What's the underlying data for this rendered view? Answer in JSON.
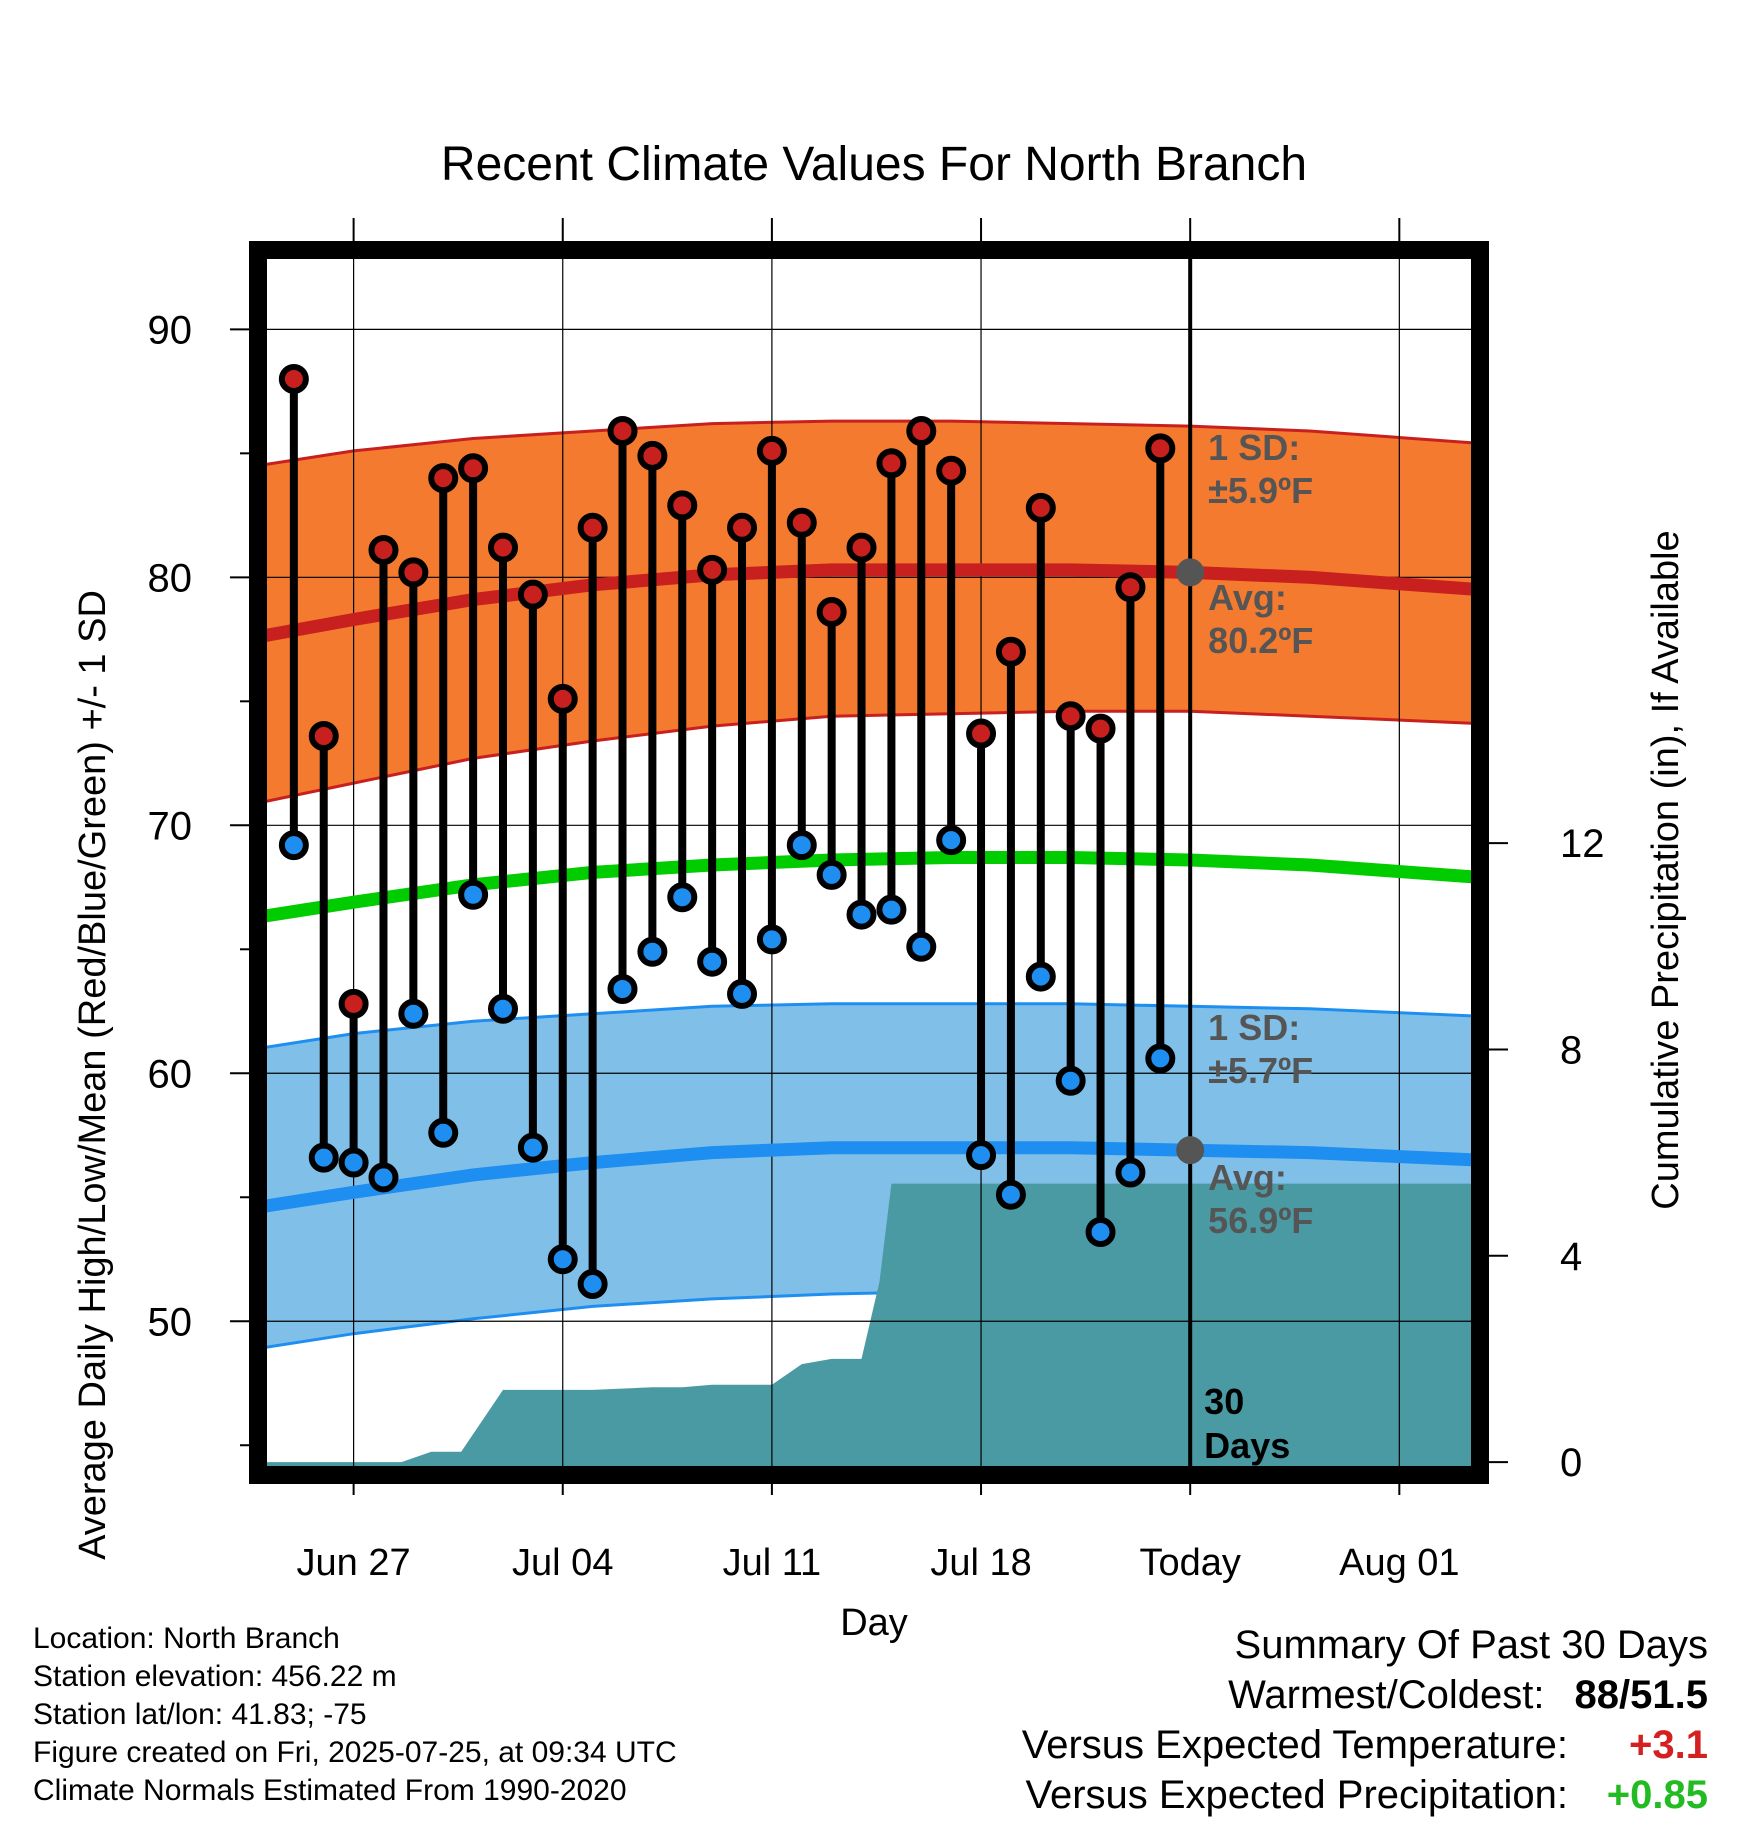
{
  "chart_data": {
    "type": "line",
    "title": "Recent Climate Values For North Branch",
    "xlabel": "Day",
    "ylabel_left": "Average Daily High/Low/Mean (Red/Blue/Green) +/- 1 SD",
    "ylabel_right": "Cumulative Precipitation (in), If Available",
    "x_ticks": [
      {
        "label": "Jun 27",
        "day": 0
      },
      {
        "label": "Jul 04",
        "day": 7
      },
      {
        "label": "Jul 11",
        "day": 14
      },
      {
        "label": "Jul 18",
        "day": 21
      },
      {
        "label": "Today",
        "day": 28
      },
      {
        "label": "Aug 01",
        "day": 35
      }
    ],
    "xlim": [
      -3.2,
      37.7
    ],
    "ylim_left": [
      43.8,
      93.2
    ],
    "ylim_right": [
      -0.25,
      23.5
    ],
    "y_ticks_left": [
      "50",
      "60",
      "70",
      "80",
      "90"
    ],
    "y_ticks_right": [
      "0",
      "4",
      "8",
      "12"
    ],
    "grid": true,
    "days": [
      -2,
      -1,
      0,
      1,
      2,
      3,
      4,
      5,
      6,
      7,
      8,
      9,
      10,
      11,
      12,
      13,
      14,
      15,
      16,
      17,
      18,
      19,
      20,
      21,
      22,
      23,
      24,
      25,
      26,
      27
    ],
    "series": [
      {
        "name": "High",
        "color": "#c8201e",
        "values": [
          88.0,
          73.6,
          62.8,
          81.1,
          80.2,
          84.0,
          84.4,
          81.2,
          79.3,
          75.1,
          82.0,
          85.9,
          84.9,
          82.9,
          80.3,
          82.0,
          85.1,
          82.2,
          78.6,
          81.2,
          84.6,
          85.9,
          84.3,
          73.7,
          77.0,
          82.8,
          74.4,
          73.9,
          79.6,
          85.2
        ]
      },
      {
        "name": "Low",
        "color": "#1e8ff0",
        "values": [
          69.2,
          56.6,
          56.4,
          55.8,
          62.4,
          57.6,
          67.2,
          62.6,
          57.0,
          52.5,
          51.5,
          63.4,
          64.9,
          67.1,
          64.5,
          63.2,
          65.4,
          69.2,
          68.0,
          66.4,
          66.6,
          65.1,
          69.4,
          56.7,
          55.1,
          63.9,
          59.7,
          53.6,
          56.0,
          60.6
        ]
      }
    ],
    "normals": {
      "days": [
        -3.2,
        0,
        4,
        8,
        12,
        16,
        20,
        24,
        28,
        32,
        37.7
      ],
      "high_avg": [
        77.6,
        78.3,
        79.1,
        79.7,
        80.1,
        80.3,
        80.3,
        80.3,
        80.2,
        80.0,
        79.5
      ],
      "high_plus_sd": [
        84.5,
        85.1,
        85.6,
        85.9,
        86.2,
        86.3,
        86.3,
        86.2,
        86.1,
        85.9,
        85.4
      ],
      "high_minus_sd": [
        70.9,
        71.7,
        72.7,
        73.4,
        74.0,
        74.4,
        74.5,
        74.6,
        74.6,
        74.4,
        74.1
      ],
      "mean": [
        66.3,
        66.9,
        67.6,
        68.1,
        68.4,
        68.6,
        68.7,
        68.7,
        68.6,
        68.4,
        67.9
      ],
      "low_avg": [
        54.6,
        55.2,
        55.9,
        56.4,
        56.8,
        57.0,
        57.0,
        57.0,
        56.9,
        56.8,
        56.5
      ],
      "low_plus_sd": [
        61.0,
        61.6,
        62.1,
        62.4,
        62.7,
        62.8,
        62.8,
        62.8,
        62.7,
        62.6,
        62.3
      ],
      "low_minus_sd": [
        48.9,
        49.5,
        50.1,
        50.6,
        50.9,
        51.1,
        51.2,
        51.2,
        51.2,
        51.0,
        50.6
      ]
    },
    "precip_cumulative": {
      "days": [
        -3.2,
        1.6,
        2.6,
        3.6,
        5.0,
        6.0,
        8.0,
        10.0,
        11.0,
        12.0,
        13.0,
        14.0,
        15.0,
        16.0,
        17.0,
        17.6,
        18.0,
        37.7
      ],
      "values": [
        0,
        0,
        0.2,
        0.2,
        1.4,
        1.4,
        1.4,
        1.45,
        1.45,
        1.5,
        1.5,
        1.5,
        1.9,
        2.0,
        2.0,
        3.5,
        5.4,
        5.4
      ]
    },
    "annotations": {
      "high_sd_line1": "1 SD:",
      "high_sd_line2": "±5.9ºF",
      "high_avg_line1": "Avg:",
      "high_avg_line2": "80.2ºF",
      "low_sd_line1": "1 SD:",
      "low_sd_line2": "±5.7ºF",
      "low_avg_line1": "Avg:",
      "low_avg_line2": "56.9ºF",
      "days_line1": "30",
      "days_line2": "Days"
    },
    "today_markers": {
      "high_avg": 80.2,
      "low_avg": 56.9
    }
  },
  "colors": {
    "high_band": "#f47a30",
    "high_line": "#c8201e",
    "low_band": "#80c0e8",
    "low_line": "#1e8ff0",
    "mean_line": "#00cc00",
    "precip": "#4a9aa4",
    "warm_value": "#d42020",
    "precip_value": "#22bb22"
  },
  "footer": {
    "location": "Location: North Branch",
    "elevation": "Station elevation: 456.22 m",
    "latlon": "Station lat/lon: 41.83; -75",
    "created": "Figure created on Fri, 2025-07-25, at 09:34 UTC",
    "normals": "Climate Normals Estimated From 1990-2020"
  },
  "summary": {
    "title": "Summary Of Past 30 Days",
    "warmest_label": "Warmest/Coldest:",
    "warmest_value": "88/51.5",
    "temp_label": "Versus Expected Temperature:",
    "temp_value": "+3.1",
    "precip_label": "Versus Expected Precipitation:",
    "precip_value": "+0.85"
  }
}
